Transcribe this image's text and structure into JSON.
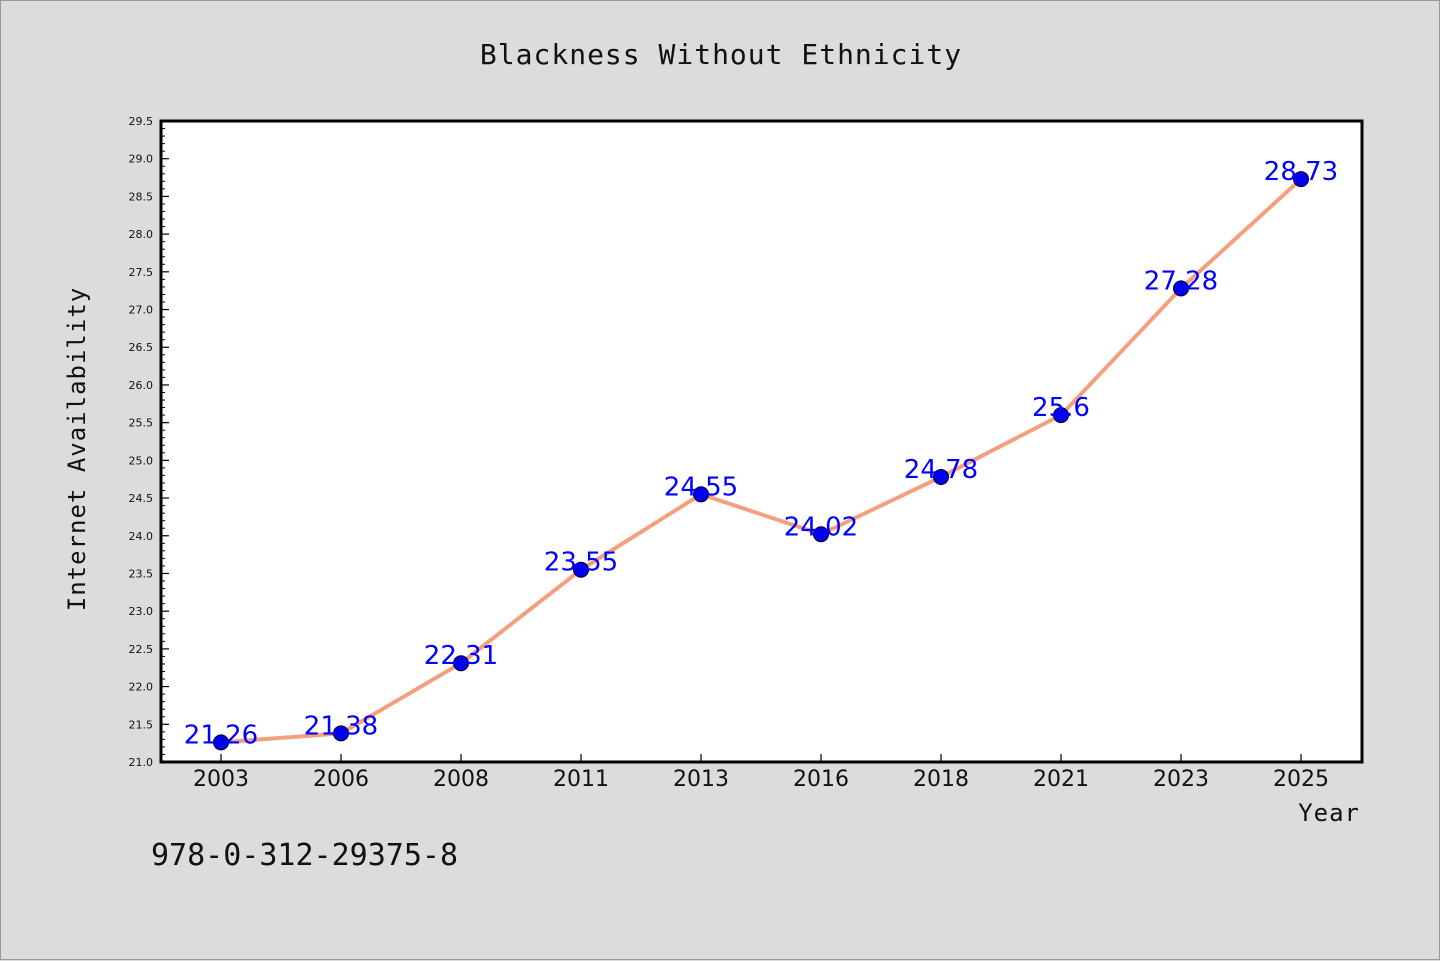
{
  "chart_data": {
    "type": "line",
    "title": "Blackness Without Ethnicity",
    "xlabel": "Year",
    "ylabel": "Internet Availability",
    "categories": [
      "2003",
      "2006",
      "2008",
      "2011",
      "2013",
      "2016",
      "2018",
      "2021",
      "2023",
      "2025"
    ],
    "series": [
      {
        "values": [
          21.26,
          21.38,
          22.31,
          23.55,
          24.55,
          24.02,
          24.78,
          25.6,
          27.28,
          28.73
        ],
        "labels": [
          "21.26",
          "21.38",
          "22.31",
          "23.55",
          "24.55",
          "24.02",
          "24.78",
          "25.6",
          "27.28",
          "28.73"
        ],
        "line_color": "#f4a07e",
        "marker_color": "#0000ee"
      }
    ],
    "ylim": [
      21.0,
      29.5
    ],
    "y_ticks": [
      "21.0",
      "21.5",
      "22.0",
      "22.5",
      "23.0",
      "23.5",
      "24.0",
      "24.5",
      "25.0",
      "25.5",
      "26.0",
      "26.5",
      "27.0",
      "27.5",
      "28.0",
      "28.5",
      "29.0",
      "29.5"
    ],
    "grid": false,
    "legend": "none",
    "footer_text": "978-0-312-29375-8",
    "background_color": "#dcdcdc",
    "plot_background": "#ffffff",
    "label_color": "#0000ff"
  }
}
